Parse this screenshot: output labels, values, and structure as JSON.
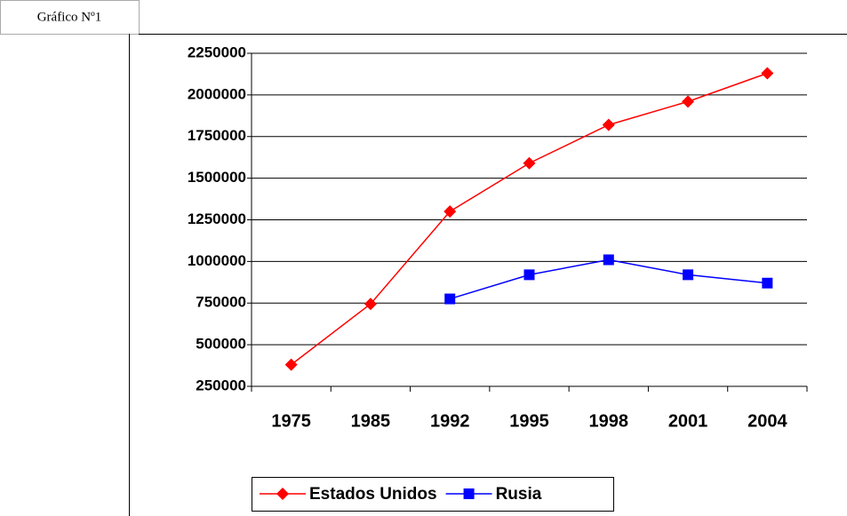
{
  "caption": "Gráfico Nº1",
  "chart_data": {
    "type": "line",
    "categories": [
      "1975",
      "1985",
      "1992",
      "1995",
      "1998",
      "2001",
      "2004"
    ],
    "series": [
      {
        "name": "Estados Unidos",
        "color": "#ff0000",
        "marker": "diamond",
        "values": [
          380000,
          745000,
          1300000,
          1590000,
          1820000,
          1960000,
          2130000
        ]
      },
      {
        "name": "Rusia",
        "color": "#0000ff",
        "marker": "square",
        "values": [
          null,
          null,
          775000,
          920000,
          1010000,
          920000,
          870000
        ]
      }
    ],
    "ylim": [
      250000,
      2250000
    ],
    "yticks": [
      250000,
      500000,
      750000,
      1000000,
      1250000,
      1500000,
      1750000,
      2000000,
      2250000
    ],
    "grid": true,
    "legend": "bottom"
  }
}
